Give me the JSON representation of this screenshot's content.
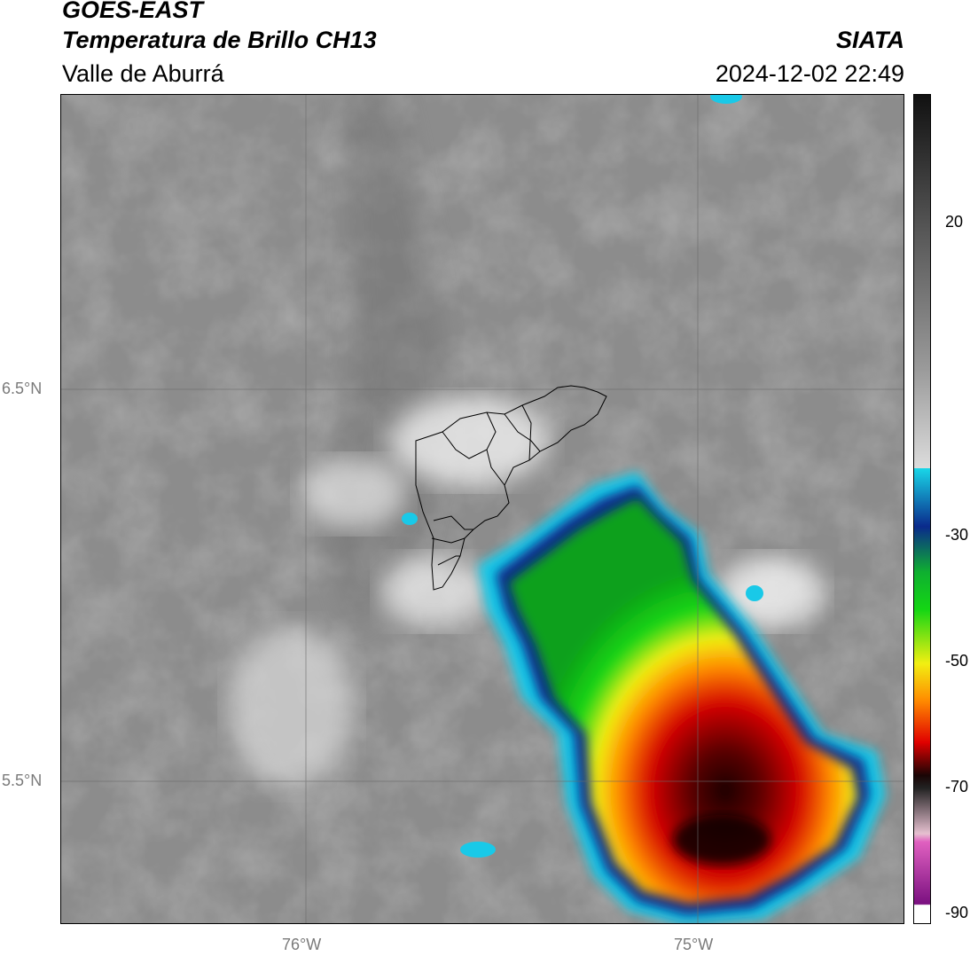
{
  "header": {
    "satellite": "GOES-EAST",
    "product": "Temperatura de Brillo CH13",
    "region": "Valle de Aburrá",
    "agency": "SIATA",
    "datetime": "2024-12-02 22:49"
  },
  "map": {
    "lat_labels": [
      "6.5°N",
      "5.5°N"
    ],
    "lon_labels": [
      "76°W",
      "75°W"
    ]
  },
  "colorbar": {
    "ticks": [
      "20",
      "-30",
      "-50",
      "-70",
      "-90"
    ],
    "colors": {
      "warm_gray": "#8a8a8a",
      "cyan": "#19c9e8",
      "blue": "#0a2a8c",
      "green": "#14d614",
      "yellow": "#f2ef12",
      "orange": "#ff8a00",
      "red": "#e00000",
      "dark": "#1a0a0a",
      "magenta": "#c040c0"
    }
  }
}
